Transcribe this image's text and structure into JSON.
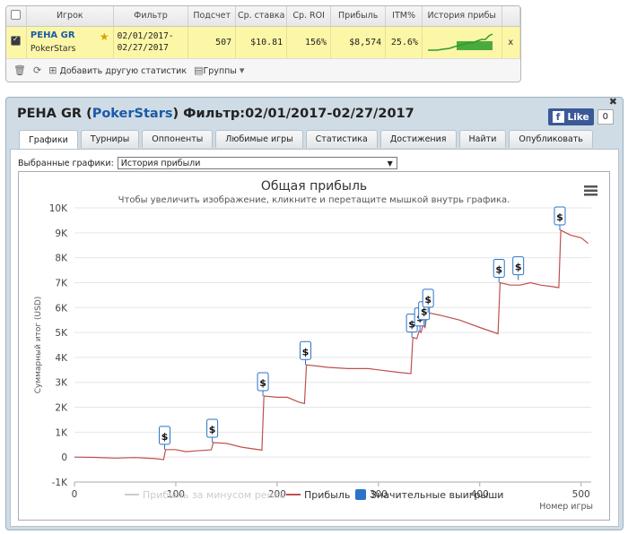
{
  "stats_table": {
    "headers": [
      "Игрок",
      "Фильтр",
      "Подсчет",
      "Ср. ставка",
      "Ср. ROI",
      "Прибыль",
      "ITM%",
      "История прибы"
    ],
    "row": {
      "player_name": "PEHA GR",
      "site": "PokerStars",
      "filter_line1": "02/01/2017-",
      "filter_line2": "02/27/2017",
      "count": "507",
      "avg_stake": "$10.81",
      "avg_roi": "156%",
      "profit": "$8,574",
      "itm": "25.6%",
      "remove": "x"
    },
    "toolbar": {
      "add_stats": "Добавить другую статистик",
      "groups": "Группы"
    }
  },
  "panel": {
    "title_player": "PEHA GR",
    "title_site": "PokerStars",
    "title_filter": "Фильтр:02/01/2017-02/27/2017",
    "fb_like": "Like",
    "fb_count": "0",
    "tabs": [
      "Графики",
      "Турниры",
      "Оппоненты",
      "Любимые игры",
      "Статистика",
      "Достижения",
      "Найти",
      "Опубликовать"
    ],
    "select_label": "Выбранные графики:",
    "select_value": "История прибыли"
  },
  "chart_data": {
    "type": "line",
    "title": "Общая прибыль",
    "subtitle": "Чтобы увеличить изображение, кликните и перетащите мышкой внутрь графика.",
    "xlabel": "Номер игры",
    "ylabel": "Суммарный итог (USD)",
    "xlim": [
      0,
      510
    ],
    "ylim": [
      -1000,
      10000
    ],
    "yticks": [
      "-1K",
      "0",
      "1K",
      "2K",
      "3K",
      "4K",
      "5K",
      "6K",
      "7K",
      "8K",
      "9K",
      "10K"
    ],
    "xticks": [
      "0",
      "100",
      "200",
      "300",
      "400",
      "500"
    ],
    "legend": [
      "Прибыль за минусом рейка",
      "Прибыль",
      "Значительные выигрыши"
    ],
    "legend_position": "bottom",
    "colors": {
      "profit": "#c0504d",
      "rake": "#cccccc",
      "marker": "#2a73c9"
    },
    "series": [
      {
        "name": "Прибыль",
        "points": [
          [
            0,
            0
          ],
          [
            20,
            -10
          ],
          [
            40,
            -40
          ],
          [
            60,
            -20
          ],
          [
            80,
            -60
          ],
          [
            88,
            -100
          ],
          [
            90,
            300
          ],
          [
            100,
            300
          ],
          [
            110,
            220
          ],
          [
            120,
            250
          ],
          [
            135,
            290
          ],
          [
            137,
            580
          ],
          [
            150,
            550
          ],
          [
            165,
            400
          ],
          [
            185,
            280
          ],
          [
            187,
            2450
          ],
          [
            200,
            2400
          ],
          [
            210,
            2400
          ],
          [
            222,
            2200
          ],
          [
            227,
            2150
          ],
          [
            229,
            3700
          ],
          [
            240,
            3650
          ],
          [
            250,
            3600
          ],
          [
            270,
            3550
          ],
          [
            290,
            3550
          ],
          [
            300,
            3500
          ],
          [
            320,
            3400
          ],
          [
            332,
            3350
          ],
          [
            334,
            4800
          ],
          [
            338,
            4750
          ],
          [
            340,
            5050
          ],
          [
            342,
            5000
          ],
          [
            344,
            5300
          ],
          [
            346,
            5200
          ],
          [
            348,
            5800
          ],
          [
            360,
            5700
          ],
          [
            380,
            5500
          ],
          [
            400,
            5200
          ],
          [
            418,
            4950
          ],
          [
            420,
            7000
          ],
          [
            430,
            6900
          ],
          [
            440,
            6900
          ],
          [
            450,
            7000
          ],
          [
            460,
            6900
          ],
          [
            470,
            6850
          ],
          [
            478,
            6800
          ],
          [
            480,
            9100
          ],
          [
            490,
            8900
          ],
          [
            500,
            8800
          ],
          [
            507,
            8574
          ]
        ]
      }
    ],
    "markers": [
      {
        "x": 89,
        "y": 300
      },
      {
        "x": 136,
        "y": 580
      },
      {
        "x": 186,
        "y": 2450
      },
      {
        "x": 228,
        "y": 3700
      },
      {
        "x": 333,
        "y": 4800
      },
      {
        "x": 341,
        "y": 5050
      },
      {
        "x": 345,
        "y": 5300
      },
      {
        "x": 349,
        "y": 5800
      },
      {
        "x": 419,
        "y": 7000
      },
      {
        "x": 438,
        "y": 7100
      },
      {
        "x": 479,
        "y": 9100
      }
    ],
    "marker_label": "$"
  }
}
